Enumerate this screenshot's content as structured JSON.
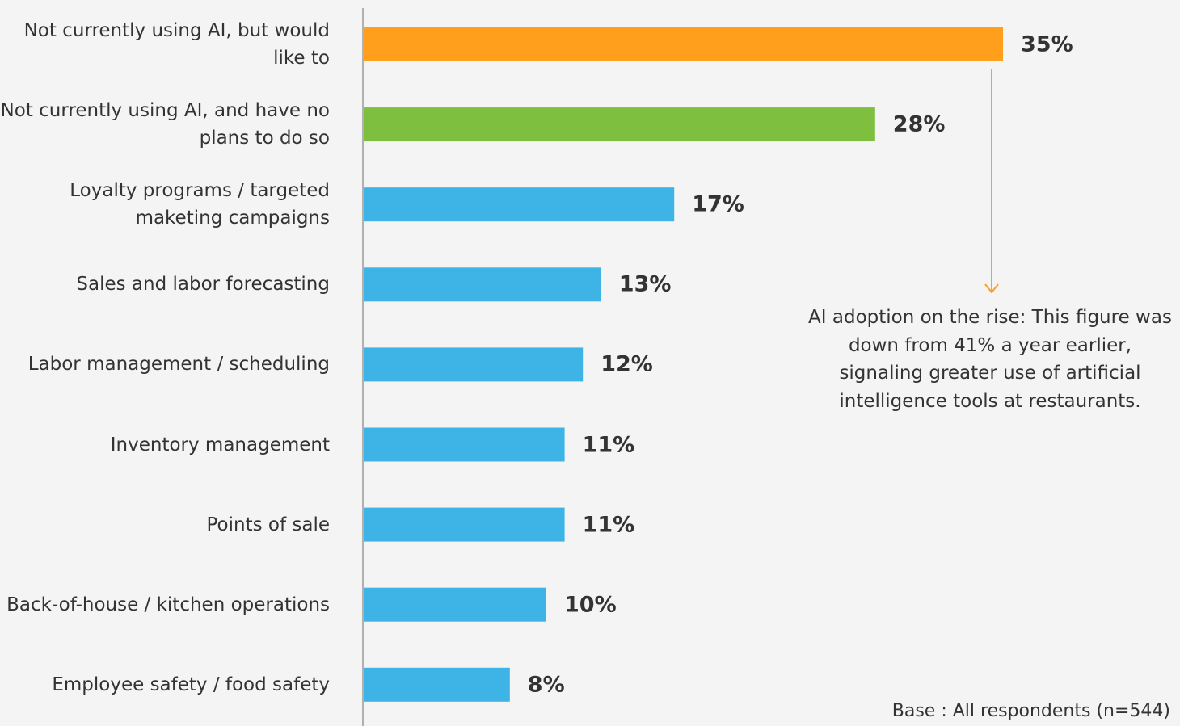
{
  "chart_data": {
    "type": "bar",
    "orientation": "horizontal",
    "categories": [
      "Not currently using AI, but would like to",
      "Not currently using AI, and have no plans to do so",
      "Loyalty programs / targeted maketing campaigns",
      "Sales and labor forecasting",
      "Labor management / scheduling",
      "Inventory management",
      "Points of sale",
      "Back-of-house / kitchen operations",
      "Employee safety / food safety"
    ],
    "values": [
      35,
      28,
      17,
      13,
      12,
      11,
      11,
      10,
      8
    ],
    "value_labels": [
      "35%",
      "28%",
      "17%",
      "13%",
      "12%",
      "11%",
      "11%",
      "10%",
      "8%"
    ],
    "colors": [
      "#ff9f1c",
      "#7fbf3f",
      "#3db4e5",
      "#3db4e5",
      "#3db4e5",
      "#3db4e5",
      "#3db4e5",
      "#3db4e5",
      "#3db4e5"
    ],
    "annotation": "AI adoption on the rise: This figure was down from 41% a year earlier, signaling greater use of artificial intelligence tools at restaurants.",
    "annotation_color": "#ff9f1c",
    "footnote": "Base : All  respondents (n=544)"
  }
}
